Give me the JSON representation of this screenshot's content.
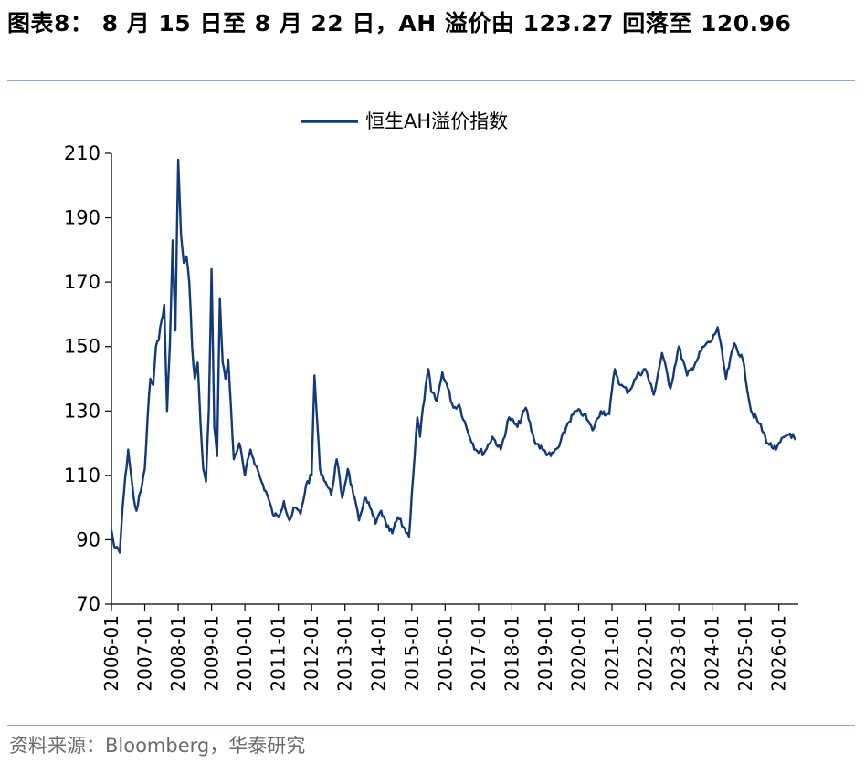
{
  "title": "图表8： 8 月 15 日至 8 月 22 日，AH 溢价由 123.27 回落至 120.96",
  "source": "资料来源：Bloomberg，华泰研究",
  "colors": {
    "line": "#12397a",
    "rule": "#8fa8c8",
    "axis": "#000000"
  },
  "chart_data": {
    "type": "line",
    "title": "",
    "xlabel": "",
    "ylabel": "",
    "ylim": [
      70,
      210
    ],
    "yticks": [
      70,
      90,
      110,
      130,
      150,
      170,
      190,
      210
    ],
    "xticks": [
      "2006-01",
      "2007-01",
      "2008-01",
      "2009-01",
      "2010-01",
      "2011-01",
      "2012-01",
      "2013-01",
      "2014-01",
      "2015-01",
      "2016-01",
      "2017-01",
      "2018-01",
      "2019-01",
      "2020-01",
      "2021-01",
      "2022-01",
      "2023-01",
      "2024-01",
      "2025-01",
      "2026-01"
    ],
    "grid": false,
    "legend": "top-center",
    "series": [
      {
        "name": "恒生AH溢价指数",
        "x": [
          "2006-01",
          "2006-02",
          "2006-04",
          "2006-05",
          "2006-07",
          "2006-09",
          "2006-10",
          "2006-12",
          "2007-01",
          "2007-02",
          "2007-03",
          "2007-04",
          "2007-05",
          "2007-06",
          "2007-07",
          "2007-08",
          "2007-09",
          "2007-10",
          "2007-11",
          "2007-12",
          "2008-01",
          "2008-02",
          "2008-03",
          "2008-04",
          "2008-05",
          "2008-06",
          "2008-07",
          "2008-08",
          "2008-09",
          "2008-10",
          "2008-11",
          "2008-12",
          "2009-01",
          "2009-02",
          "2009-03",
          "2009-04",
          "2009-05",
          "2009-06",
          "2009-07",
          "2009-09",
          "2009-11",
          "2010-01",
          "2010-03",
          "2010-05",
          "2010-07",
          "2010-09",
          "2010-11",
          "2011-01",
          "2011-03",
          "2011-05",
          "2011-07",
          "2011-09",
          "2011-11",
          "2012-01",
          "2012-02",
          "2012-04",
          "2012-06",
          "2012-08",
          "2012-10",
          "2012-12",
          "2013-02",
          "2013-04",
          "2013-06",
          "2013-08",
          "2013-10",
          "2013-12",
          "2014-02",
          "2014-04",
          "2014-06",
          "2014-08",
          "2014-10",
          "2014-12",
          "2015-01",
          "2015-03",
          "2015-04",
          "2015-05",
          "2015-07",
          "2015-08",
          "2015-10",
          "2015-12",
          "2016-02",
          "2016-04",
          "2016-06",
          "2016-09",
          "2016-12",
          "2017-03",
          "2017-06",
          "2017-09",
          "2017-12",
          "2018-03",
          "2018-06",
          "2018-09",
          "2018-12",
          "2019-03",
          "2019-06",
          "2019-09",
          "2019-12",
          "2020-03",
          "2020-06",
          "2020-09",
          "2020-12",
          "2021-02",
          "2021-04",
          "2021-07",
          "2021-10",
          "2022-01",
          "2022-04",
          "2022-07",
          "2022-10",
          "2023-01",
          "2023-04",
          "2023-07",
          "2023-10",
          "2024-01",
          "2024-03",
          "2024-06",
          "2024-09",
          "2024-12",
          "2025-03",
          "2025-06",
          "2025-09",
          "2025-12",
          "2026-03",
          "2026-05",
          "2026-07"
        ],
        "values": [
          93,
          88,
          86,
          100,
          118,
          103,
          99,
          107,
          112,
          128,
          140,
          138,
          150,
          152,
          158,
          163,
          130,
          150,
          183,
          155,
          208,
          185,
          176,
          178,
          170,
          150,
          140,
          145,
          127,
          112,
          108,
          130,
          174,
          125,
          116,
          165,
          145,
          140,
          146,
          115,
          120,
          110,
          118,
          113,
          108,
          104,
          98,
          97,
          102,
          96,
          100,
          98,
          107,
          110,
          141,
          112,
          108,
          104,
          115,
          103,
          112,
          104,
          96,
          103,
          100,
          95,
          99,
          94,
          92,
          97,
          94,
          91,
          104,
          128,
          122,
          131,
          143,
          136,
          133,
          142,
          137,
          131,
          132,
          124,
          118,
          117,
          122,
          118,
          128,
          125,
          131,
          121,
          118,
          116,
          119,
          126,
          130,
          129,
          124,
          130,
          129,
          143,
          138,
          136,
          141,
          143,
          135,
          148,
          137,
          150,
          141,
          145,
          150,
          152,
          156,
          140,
          151,
          146,
          130,
          126,
          120,
          118,
          122,
          123,
          121
        ]
      }
    ]
  }
}
